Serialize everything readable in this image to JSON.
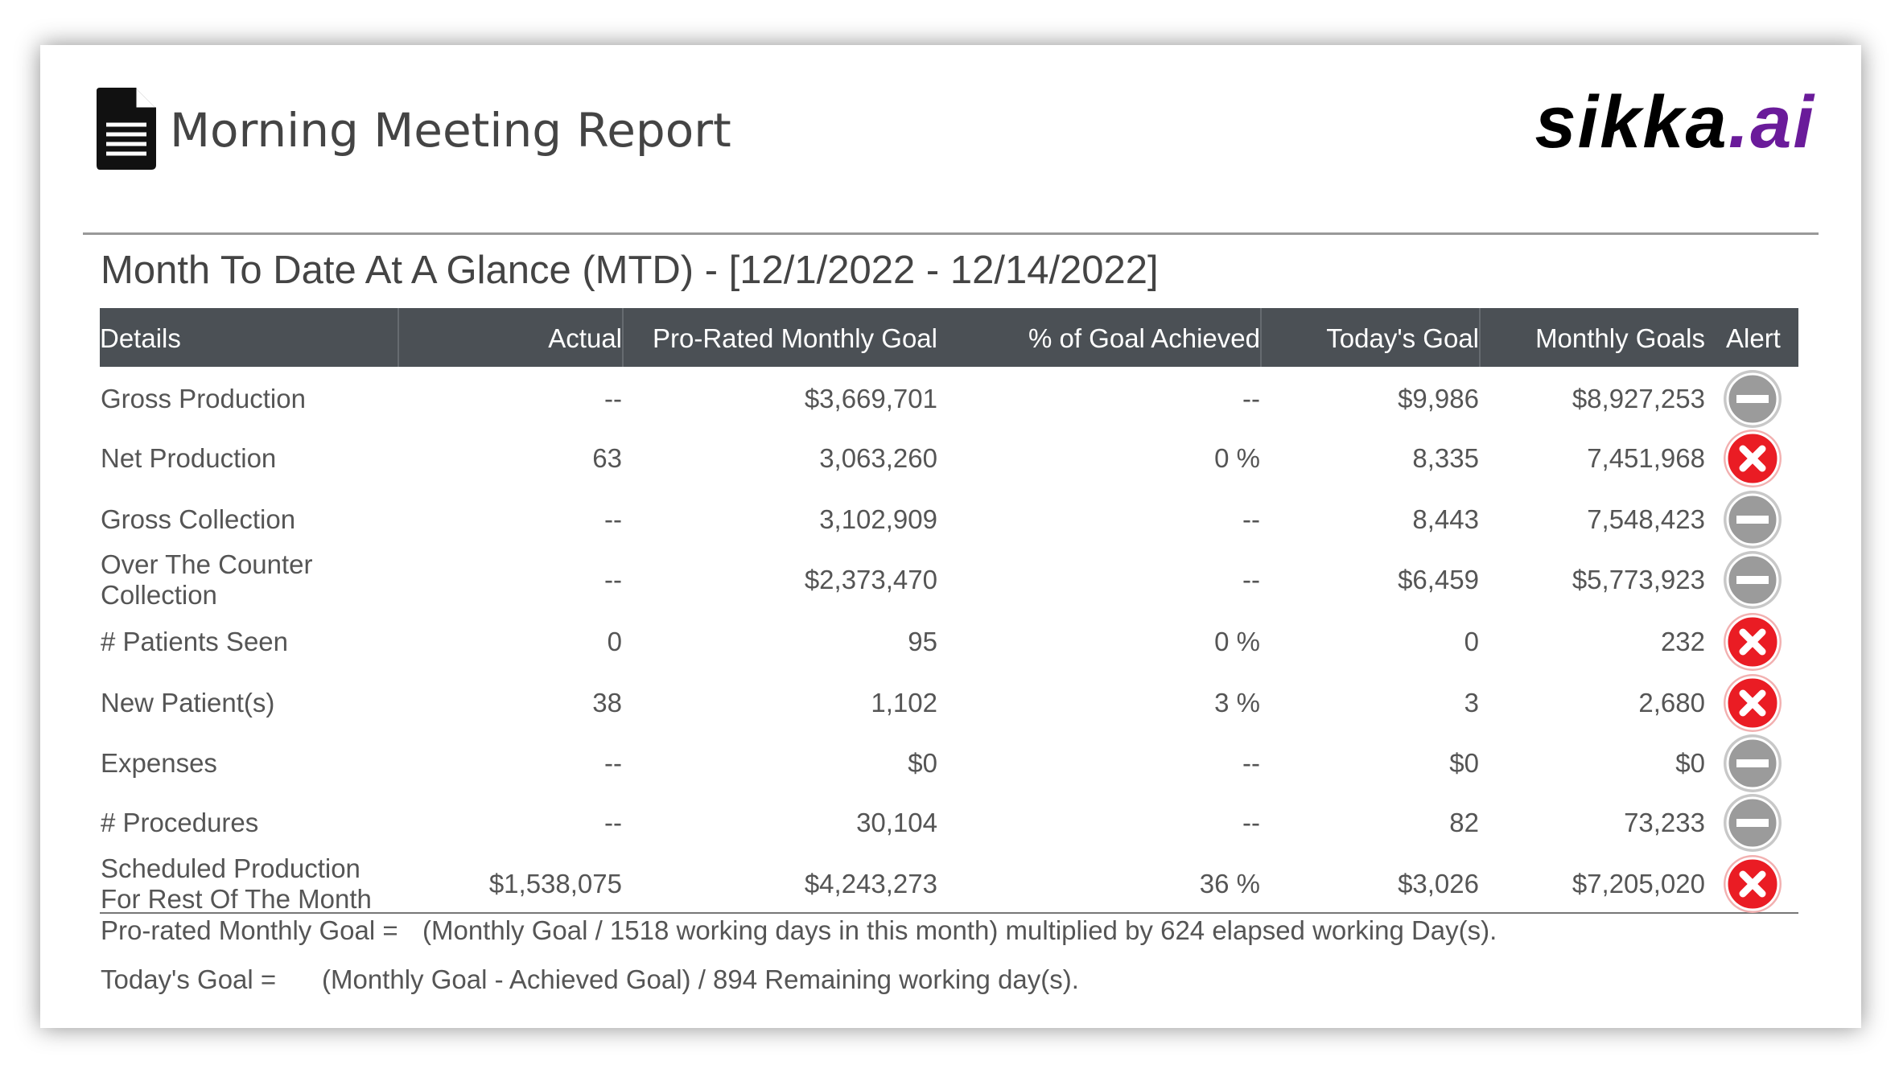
{
  "header": {
    "title": "Morning Meeting Report",
    "logo": {
      "main": "sikka",
      "accent": ".ai"
    }
  },
  "section": {
    "title": "Month To Date At A Glance (MTD) - [12/1/2022 - 12/14/2022]"
  },
  "table": {
    "columns": [
      "Details",
      "Actual",
      "Pro-Rated Monthly Goal",
      "% of Goal Achieved",
      "Today's Goal",
      "Monthly Goals",
      "Alert"
    ],
    "rows": [
      [
        "Gross Production",
        "--",
        "$3,669,701",
        "--",
        "$9,986",
        "$8,927,253"
      ],
      [
        "Net Production",
        "63",
        "3,063,260",
        "0 %",
        "8,335",
        "7,451,968"
      ],
      [
        "Gross Collection",
        "--",
        "3,102,909",
        "--",
        "8,443",
        "7,548,423"
      ],
      [
        "Over The Counter Collection",
        "--",
        "$2,373,470",
        "--",
        "$6,459",
        "$5,773,923"
      ],
      [
        "# Patients Seen",
        "0",
        "95",
        "0 %",
        "0",
        "232"
      ],
      [
        "New Patient(s)",
        "38",
        "1,102",
        "3 %",
        "3",
        "2,680"
      ],
      [
        "Expenses",
        "--",
        "$0",
        "--",
        "$0",
        "$0"
      ],
      [
        "# Procedures",
        "--",
        "30,104",
        "--",
        "82",
        "73,233"
      ],
      [
        "Scheduled Production For Rest Of The Month",
        "$1,538,075",
        "$4,243,273",
        "36 %",
        "$3,026",
        "$7,205,020"
      ]
    ]
  },
  "footnotes": [
    {
      "label": "Pro-rated Monthly Goal =",
      "text": "(Monthly Goal / 1518 working days in this month) multiplied by 624 elapsed working Day(s)."
    },
    {
      "label": "Today's Goal =",
      "text": "(Monthly Goal - Achieved Goal) / 894 Remaining working day(s)."
    }
  ]
}
